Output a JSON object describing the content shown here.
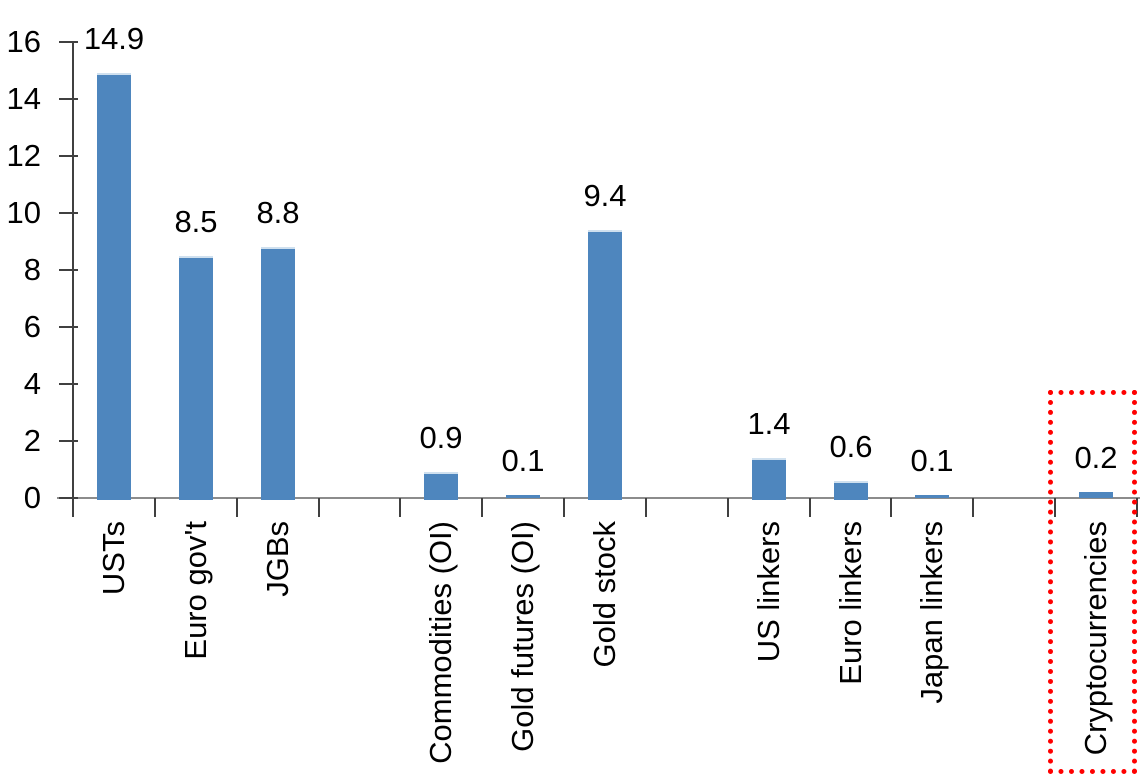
{
  "chart_data": {
    "type": "bar",
    "title": "",
    "xlabel": "",
    "ylabel": "",
    "categories": [
      "USTs",
      "Euro gov't",
      "JGBs",
      "",
      "Commodities (OI)",
      "Gold futures (OI)",
      "Gold stock",
      "",
      "US linkers",
      "Euro linkers",
      "Japan linkers",
      "",
      "Cryptocurrencies"
    ],
    "values": [
      14.9,
      8.5,
      8.8,
      null,
      0.9,
      0.1,
      9.4,
      null,
      1.4,
      0.6,
      0.1,
      null,
      0.2
    ],
    "data_labels": [
      "14.9",
      "8.5",
      "8.8",
      "",
      "0.9",
      "0.1",
      "9.4",
      "",
      "1.4",
      "0.6",
      "0.1",
      "",
      "0.2"
    ],
    "yticks": [
      0,
      2,
      4,
      6,
      8,
      10,
      12,
      14,
      16
    ],
    "ylim": [
      0,
      16
    ],
    "grid": false,
    "legend_position": "none",
    "label_rotation_degrees": -90,
    "bar_color": "#4e86be",
    "bar_top_edge_color": "#cfe0ef",
    "x_axis_line_color": "#8c8c8c",
    "y_axis_line_color": "#404040",
    "tick_color": "#404040",
    "text_color": "#000000",
    "highlight_box": {
      "target_category": "Cryptocurrencies",
      "border_color": "#ff0000",
      "border_style": "dotted"
    }
  }
}
